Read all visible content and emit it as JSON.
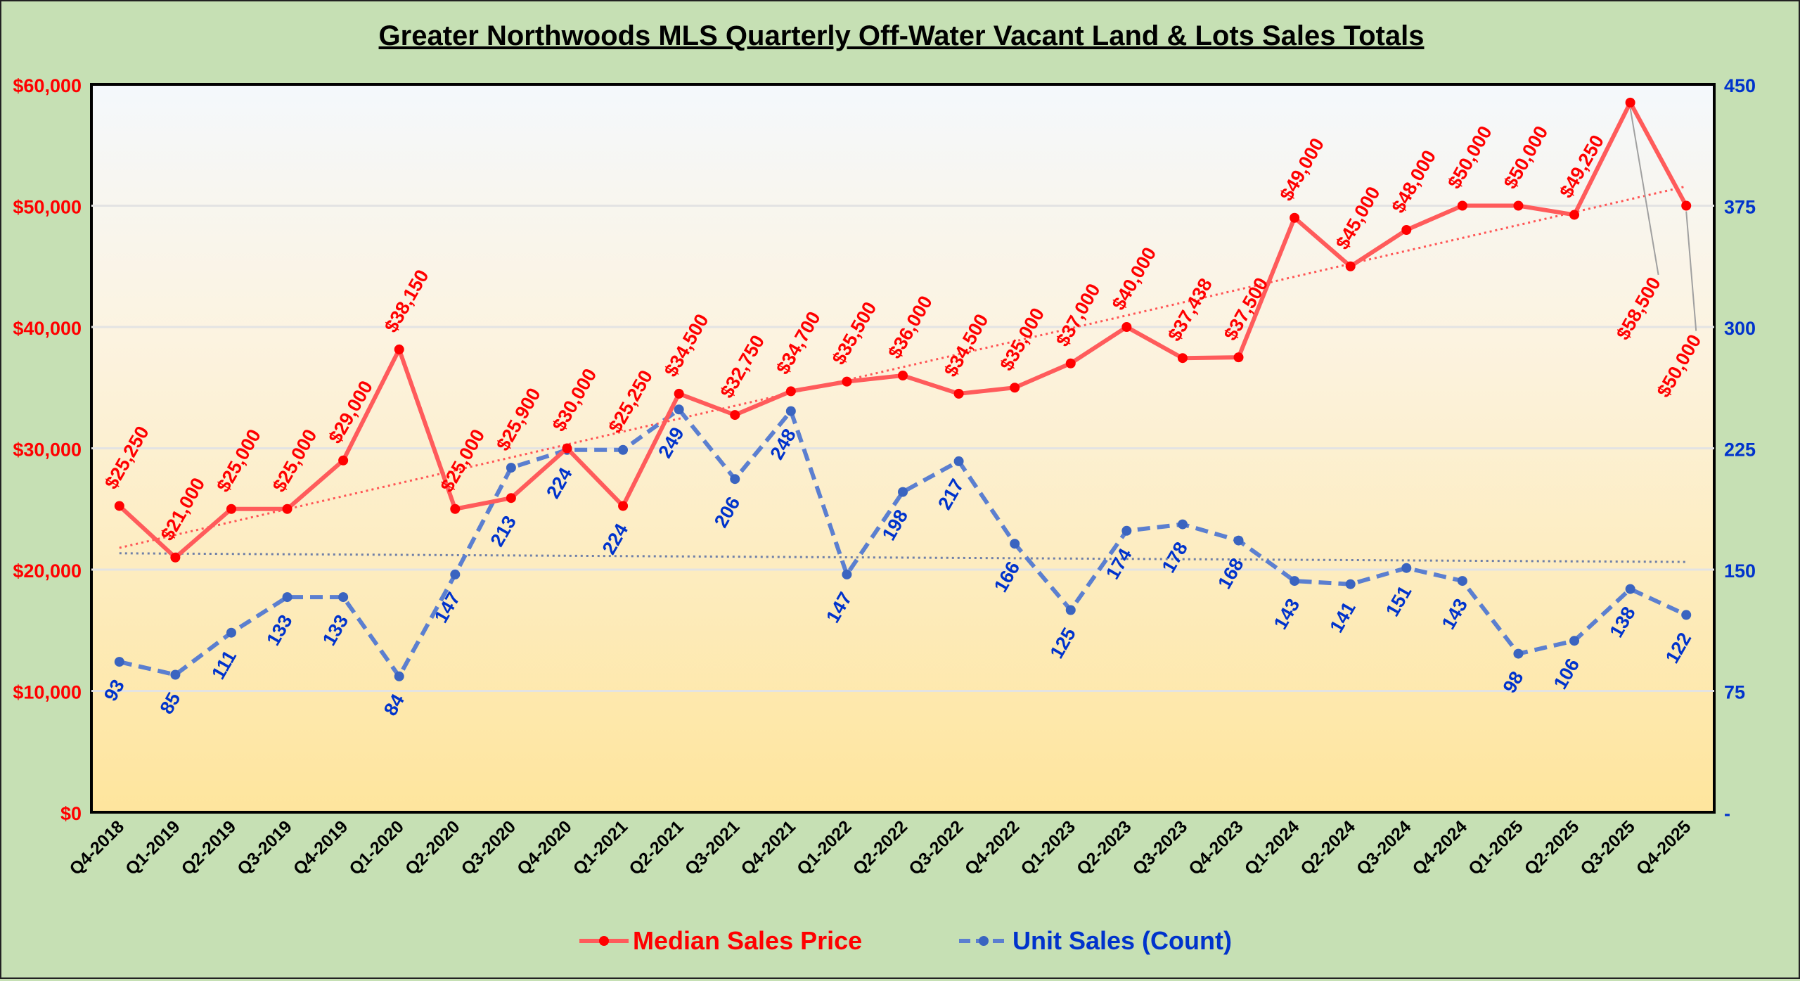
{
  "chart_data": {
    "type": "line",
    "title": "Greater Northwoods MLS Quarterly Off-Water Vacant Land & Lots Sales Totals",
    "categories": [
      "Q4-2018",
      "Q1-2019",
      "Q2-2019",
      "Q3-2019",
      "Q4-2019",
      "Q1-2020",
      "Q2-2020",
      "Q3-2020",
      "Q4-2020",
      "Q1-2021",
      "Q2-2021",
      "Q3-2021",
      "Q4-2021",
      "Q1-2022",
      "Q2-2022",
      "Q3-2022",
      "Q4-2022",
      "Q1-2023",
      "Q2-2023",
      "Q3-2023",
      "Q4-2023",
      "Q1-2024",
      "Q2-2024",
      "Q3-2024",
      "Q4-2024",
      "Q1-2025",
      "Q2-2025",
      "Q3-2025",
      "Q4-2025"
    ],
    "series": [
      {
        "name": "Median Sales Price",
        "axis": "left",
        "color": "#ff5b5b",
        "marker_color": "#ff0000",
        "line_style": "solid",
        "trendline": "linear",
        "values": [
          25250,
          21000,
          25000,
          25000,
          29000,
          38150,
          25000,
          25900,
          30000,
          25250,
          34500,
          32750,
          34700,
          35500,
          36000,
          34500,
          35000,
          37000,
          40000,
          37438,
          37500,
          49000,
          45000,
          48000,
          50000,
          50000,
          49250,
          58500,
          50000
        ],
        "labels": [
          "$25,250",
          "$21,000",
          "$25,000",
          "$25,000",
          "$29,000",
          "$38,150",
          "$25,000",
          "$25,900",
          "$30,000",
          "$25,250",
          "$34,500",
          "$32,750",
          "$34,700",
          "$35,500",
          "$36,000",
          "$34,500",
          "$35,000",
          "$37,000",
          "$40,000",
          "$37,438",
          "$37,500",
          "$49,000",
          "$45,000",
          "$48,000",
          "$50,000",
          "$50,000",
          "$49,250",
          "$58,500",
          "$50,000"
        ]
      },
      {
        "name": "Unit Sales (Count)",
        "axis": "right",
        "color": "#5b7fd0",
        "marker_color": "#3a64c0",
        "line_style": "dashed",
        "trendline": "linear",
        "values": [
          93,
          85,
          111,
          133,
          133,
          84,
          147,
          213,
          224,
          224,
          249,
          206,
          248,
          147,
          198,
          217,
          166,
          125,
          174,
          178,
          168,
          143,
          141,
          151,
          143,
          98,
          106,
          138,
          122
        ]
      }
    ],
    "y_left": {
      "range": [
        0,
        60000
      ],
      "ticks": [
        "$0",
        "$10,000",
        "$20,000",
        "$30,000",
        "$40,000",
        "$50,000",
        "$60,000"
      ],
      "color": "#ff0000"
    },
    "y_right": {
      "range": [
        0,
        450
      ],
      "ticks": [
        "-",
        "75",
        "150",
        "225",
        "300",
        "375",
        "450"
      ],
      "color": "#0033cc"
    },
    "grid": true,
    "legend": "bottom-center"
  }
}
